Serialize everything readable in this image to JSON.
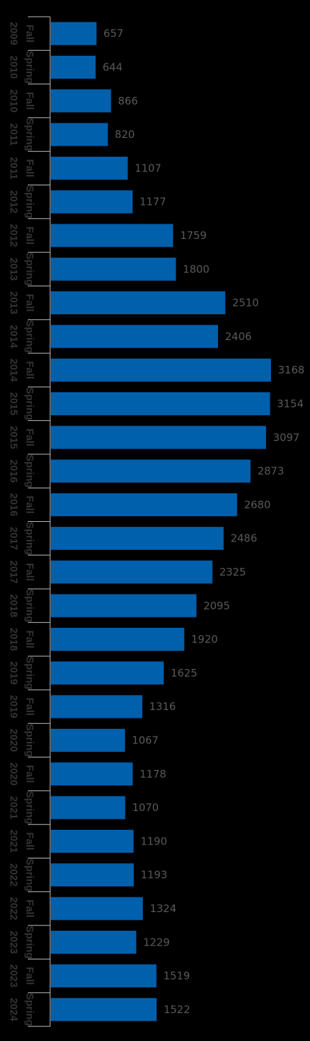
{
  "chart_data": {
    "type": "bar",
    "orientation": "horizontal",
    "title": "",
    "xlabel": "",
    "ylabel": "",
    "grid": false,
    "legend": "none",
    "bar_color": "#0060AC",
    "label_color": "#595959",
    "category_color": "#333333",
    "background": "#000000",
    "xlim": [
      0,
      3300
    ],
    "categories": [
      "Fall 2009",
      "Spring 2010",
      "Fall 2010",
      "Spring 2011",
      "Fall 2011",
      "Spring 2012",
      "Fall 2012",
      "Spring 2013",
      "Fall 2013",
      "Spring 2014",
      "Fall 2014",
      "Spring 2015",
      "Fall 2015",
      "Spring 2016",
      "Fall 2016",
      "Spring 2017",
      "Fall 2017",
      "Spring 2018",
      "Fall 2018",
      "Spring 2019",
      "Fall 2019",
      "Spring 2020",
      "Fall 2020",
      "Spring 2021",
      "Fall 2021",
      "Spring 2022",
      "Fall 2022",
      "Spring 2023",
      "Fall 2023",
      "Spring 2024"
    ],
    "values": [
      657,
      644,
      866,
      820,
      1107,
      1177,
      1759,
      1800,
      2510,
      2406,
      3168,
      3154,
      3097,
      2873,
      2680,
      2486,
      2325,
      2095,
      1920,
      1625,
      1316,
      1067,
      1178,
      1070,
      1190,
      1193,
      1324,
      1229,
      1519,
      1522
    ]
  }
}
